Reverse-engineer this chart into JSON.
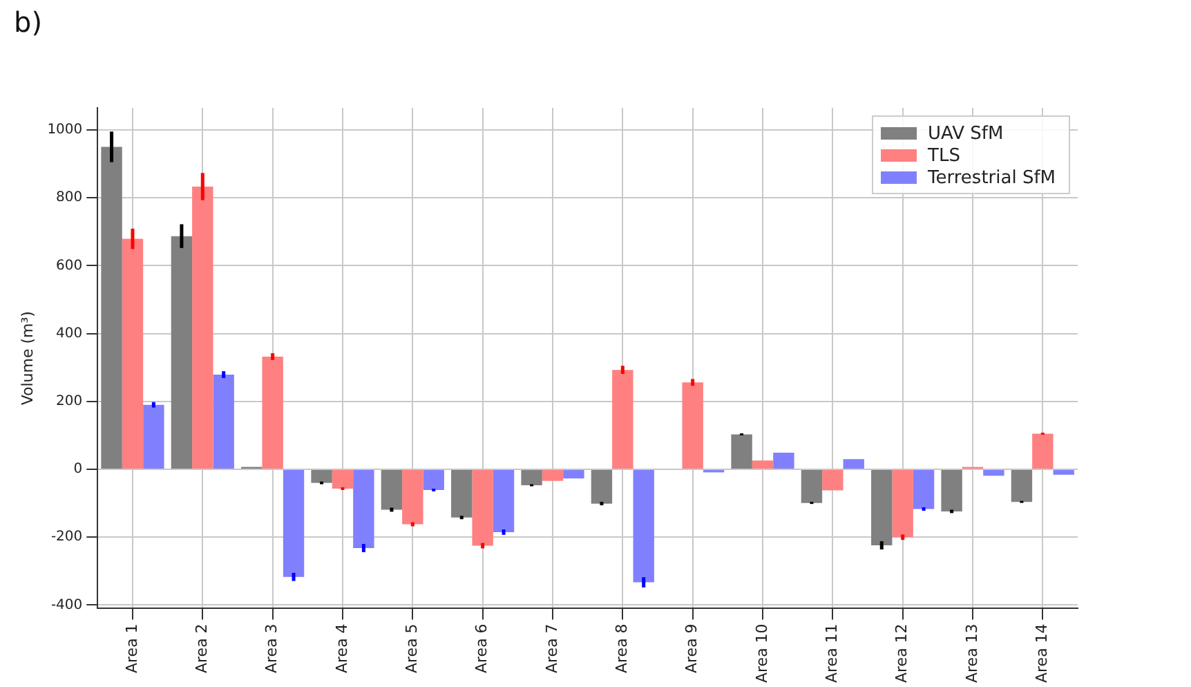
{
  "chart_data": {
    "type": "bar",
    "title": "b)",
    "ylabel": "Volume (m³)",
    "categories": [
      "Area 1",
      "Area 2",
      "Area 3",
      "Area 4",
      "Area 5",
      "Area 6",
      "Area 7",
      "Area 8",
      "Area 9",
      "Area 10",
      "Area 11",
      "Area 12",
      "Area 13",
      "Area 14"
    ],
    "series": [
      {
        "name": "UAV SfM",
        "color": "#808080",
        "values": [
          950,
          687,
          7,
          -40,
          -119,
          -142,
          -47,
          -101,
          0,
          103,
          -99,
          -224,
          -124,
          -96
        ],
        "errors": [
          45,
          35,
          null,
          4,
          6,
          5,
          3,
          5,
          null,
          3,
          3,
          12,
          5,
          3
        ]
      },
      {
        "name": "TLS",
        "color": "#ff8080",
        "values": [
          679,
          833,
          332,
          -57,
          -162,
          -225,
          -34,
          293,
          256,
          26,
          -62,
          -200,
          7,
          105
        ],
        "errors": [
          30,
          40,
          10,
          4,
          6,
          8,
          null,
          12,
          10,
          null,
          null,
          8,
          null,
          3
        ]
      },
      {
        "name": "Terrestrial SfM",
        "color": "#8080ff",
        "values": [
          190,
          279,
          -317,
          -232,
          -61,
          -185,
          -27,
          -333,
          -9,
          49,
          30,
          -117,
          -19,
          -16
        ],
        "errors": [
          8,
          10,
          12,
          12,
          4,
          8,
          null,
          15,
          null,
          null,
          null,
          5,
          null,
          null
        ]
      }
    ],
    "ylim": [
      -410,
      1065
    ],
    "yticks": [
      -400,
      -200,
      0,
      200,
      400,
      600,
      800,
      1000
    ],
    "grid": true,
    "legend": "top right"
  }
}
